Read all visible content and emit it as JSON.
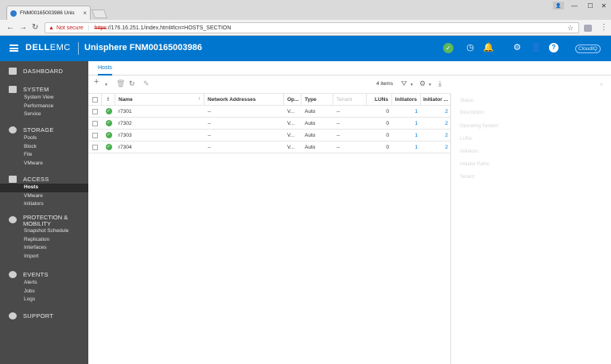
{
  "browser": {
    "tab_title": "FNM00165003986 Unis",
    "tab_close": "×",
    "not_secure": "Not secure",
    "url_scheme": "https",
    "url_rest": "://176.16.251.1/index.html#lcn=HOSTS_SECTION"
  },
  "header": {
    "brand_dell": "DELL",
    "brand_emc": "EMC",
    "title": "Unisphere FNM00165003986",
    "cloudiq": "CloudIQ"
  },
  "sidebar": {
    "dashboard": "DASHBOARD",
    "system": {
      "label": "SYSTEM",
      "items": [
        "System View",
        "Performance",
        "Service"
      ]
    },
    "storage": {
      "label": "STORAGE",
      "items": [
        "Pools",
        "Block",
        "File",
        "VMware"
      ]
    },
    "access": {
      "label": "ACCESS",
      "items": [
        "Hosts",
        "VMware",
        "Initiators"
      ]
    },
    "protection": {
      "label1": "PROTECTION &",
      "label2": "MOBILITY",
      "items": [
        "Snapshot Schedule",
        "Replication",
        "Interfaces",
        "Import"
      ]
    },
    "events": {
      "label": "EVENTS",
      "items": [
        "Alerts",
        "Jobs",
        "Logs"
      ]
    },
    "support": "SUPPORT"
  },
  "main": {
    "tab": "Hosts",
    "items_count": "4 items",
    "columns": {
      "status": "!",
      "name": "Name",
      "network": "Network Addresses",
      "os": "Op...",
      "type": "Type",
      "tenant": "Tenant",
      "luns": "LUNs",
      "initiators": "Initiators",
      "initiator_paths": "Initiator ..."
    },
    "rows": [
      {
        "name": "r7301",
        "network": "--",
        "os": "V...",
        "type": "Auto",
        "tenant": "--",
        "luns": "0",
        "initiators": "1",
        "initiator_paths": "2"
      },
      {
        "name": "r7302",
        "network": "--",
        "os": "V...",
        "type": "Auto",
        "tenant": "--",
        "luns": "0",
        "initiators": "1",
        "initiator_paths": "2"
      },
      {
        "name": "r7303",
        "network": "--",
        "os": "V...",
        "type": "Auto",
        "tenant": "--",
        "luns": "0",
        "initiators": "1",
        "initiator_paths": "2"
      },
      {
        "name": "r7304",
        "network": "--",
        "os": "V...",
        "type": "Auto",
        "tenant": "--",
        "luns": "0",
        "initiators": "1",
        "initiator_paths": "2"
      }
    ]
  },
  "details": {
    "labels": [
      "Status:",
      "Description:",
      "Operating System:",
      "LUNs:",
      "Initiators:",
      "Initiator Paths:",
      "Tenant:"
    ]
  },
  "colors": {
    "header_blue": "#0076ce",
    "sidebar_bg": "#4a4a4a",
    "ok_green": "#4caf50"
  }
}
